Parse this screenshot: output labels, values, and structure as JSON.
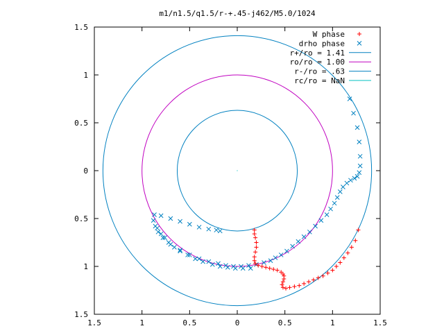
{
  "chart_data": {
    "type": "scatter",
    "title": "m1/n1.5/q1.5/r-+.45-j462/M5.0/1024",
    "xlabel": "",
    "ylabel": "",
    "xlim": [
      -1.5,
      1.5
    ],
    "ylim": [
      -1.5,
      1.5
    ],
    "x_tick_labels": [
      "1.5",
      "1",
      "0.5",
      "0",
      "0.5",
      "1",
      "1.5"
    ],
    "y_tick_labels": [
      "1.5",
      "1",
      "0.5",
      "0",
      "0.5",
      "1",
      "1.5"
    ],
    "grid": false,
    "legend_position": "top-right",
    "legend": [
      {
        "label": "W phase",
        "color": "#ff0000",
        "marker": "+"
      },
      {
        "label": "drho phase",
        "color": "#0080c0",
        "marker": "x"
      },
      {
        "label": "r+/ro = 1.41",
        "color": "#0080c0",
        "marker": "line"
      },
      {
        "label": "ro/ro = 1.00",
        "color": "#c000c0",
        "marker": "line"
      },
      {
        "label": "r-/ro = .63",
        "color": "#0080c0",
        "marker": "line"
      },
      {
        "label": "rc/ro = NaN",
        "color": "#00c0c0",
        "marker": "line"
      }
    ],
    "circles": [
      {
        "name": "r+/ro = 1.41",
        "r": 1.41,
        "color": "#0080c0"
      },
      {
        "name": "ro/ro = 1.00",
        "r": 1.0,
        "color": "#c000c0"
      },
      {
        "name": "r-/ro = .63",
        "r": 0.63,
        "color": "#0080c0"
      }
    ],
    "series": [
      {
        "name": "W phase",
        "color": "#ff0000",
        "marker": "+",
        "x": [
          0.18,
          0.18,
          0.19,
          0.2,
          0.2,
          0.19,
          0.18,
          0.18,
          0.19,
          0.22,
          0.26,
          0.3,
          0.34,
          0.38,
          0.42,
          0.46,
          0.48,
          0.49,
          0.49,
          0.48,
          0.47,
          0.48,
          0.51,
          0.55,
          0.6,
          0.65,
          0.7,
          0.75,
          0.8,
          0.85,
          0.9,
          0.95,
          1.0,
          1.04,
          1.08,
          1.12,
          1.16,
          1.2,
          1.24,
          1.27
        ],
        "y": [
          -0.62,
          -0.66,
          -0.7,
          -0.75,
          -0.8,
          -0.85,
          -0.9,
          -0.94,
          -0.97,
          -0.99,
          -1.0,
          -1.01,
          -1.02,
          -1.03,
          -1.04,
          -1.06,
          -1.08,
          -1.1,
          -1.13,
          -1.16,
          -1.19,
          -1.22,
          -1.23,
          -1.22,
          -1.21,
          -1.2,
          -1.18,
          -1.16,
          -1.14,
          -1.12,
          -1.1,
          -1.07,
          -1.04,
          -1.0,
          -0.96,
          -0.91,
          -0.86,
          -0.8,
          -0.73,
          -0.62
        ]
      },
      {
        "name": "drho phase",
        "color": "#0080c0",
        "marker": "x",
        "x": [
          1.18,
          1.22,
          1.26,
          1.28,
          1.29,
          1.29,
          1.28,
          1.26,
          1.23,
          1.19,
          1.15,
          1.11,
          1.08,
          1.05,
          1.02,
          0.98,
          0.94,
          0.88,
          0.82,
          0.76,
          0.7,
          0.64,
          0.58,
          0.52,
          0.46,
          0.4,
          0.35,
          0.28,
          0.2,
          0.12,
          0.04,
          -0.04,
          -0.12,
          -0.2,
          -0.3,
          -0.4,
          -0.5,
          -0.6,
          -0.7,
          -0.78,
          -0.83,
          -0.86,
          -0.88,
          -0.87,
          -0.8,
          -0.7,
          -0.6,
          -0.5,
          -0.4,
          -0.3,
          -0.22,
          -0.18,
          -0.84,
          -0.8,
          -0.76,
          -0.72,
          -0.66,
          -0.6,
          -0.52,
          -0.44,
          -0.36,
          -0.26,
          -0.18,
          -0.1,
          -0.02,
          0.06,
          0.14
        ],
        "y": [
          0.75,
          0.6,
          0.45,
          0.3,
          0.15,
          0.05,
          -0.02,
          -0.06,
          -0.08,
          -0.1,
          -0.13,
          -0.17,
          -0.22,
          -0.28,
          -0.34,
          -0.4,
          -0.46,
          -0.52,
          -0.58,
          -0.64,
          -0.69,
          -0.74,
          -0.79,
          -0.84,
          -0.88,
          -0.91,
          -0.94,
          -0.96,
          -0.98,
          -0.99,
          -1.0,
          -1.0,
          -0.99,
          -0.97,
          -0.95,
          -0.92,
          -0.88,
          -0.83,
          -0.77,
          -0.7,
          -0.64,
          -0.58,
          -0.52,
          -0.46,
          -0.47,
          -0.5,
          -0.53,
          -0.56,
          -0.59,
          -0.61,
          -0.62,
          -0.63,
          -0.6,
          -0.66,
          -0.7,
          -0.75,
          -0.8,
          -0.84,
          -0.88,
          -0.92,
          -0.95,
          -0.98,
          -1.0,
          -1.01,
          -1.02,
          -1.02,
          -1.02
        ]
      }
    ]
  }
}
